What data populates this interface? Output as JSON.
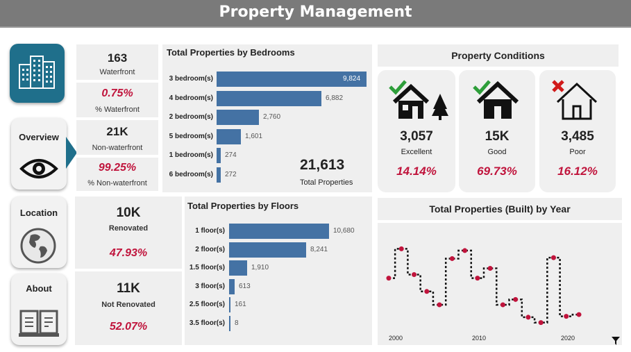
{
  "header": {
    "title": "Property Management"
  },
  "nav": {
    "overview": "Overview",
    "location": "Location",
    "about": "About"
  },
  "waterfront": {
    "count": "163",
    "label": "Waterfront",
    "pct": "0.75%",
    "pct_label": "% Waterfront",
    "non_count": "21K",
    "non_label": "Non-waterfront",
    "non_pct": "99.25%",
    "non_pct_label": "% Non-waterfront"
  },
  "renovation": {
    "renovated": "10K",
    "renovated_label": "Renovated",
    "renovated_pct": "47.93%",
    "not_renovated": "11K",
    "not_renovated_label": "Not Renovated",
    "not_renovated_pct": "52.07%"
  },
  "bedrooms": {
    "title": "Total Properties by Bedrooms",
    "total": "21,613",
    "total_label": "Total Properties",
    "items": [
      {
        "label": "3 bedroom(s)",
        "value": 9824,
        "display": "9,824"
      },
      {
        "label": "4 bedroom(s)",
        "value": 6882,
        "display": "6,882"
      },
      {
        "label": "2 bedroom(s)",
        "value": 2760,
        "display": "2,760"
      },
      {
        "label": "5 bedroom(s)",
        "value": 1601,
        "display": "1,601"
      },
      {
        "label": "1 bedroom(s)",
        "value": 274,
        "display": "274"
      },
      {
        "label": "6 bedroom(s)",
        "value": 272,
        "display": "272"
      }
    ]
  },
  "floors": {
    "title": "Total Properties by Floors",
    "items": [
      {
        "label": "1 floor(s)",
        "value": 10680,
        "display": "10,680"
      },
      {
        "label": "2 floor(s)",
        "value": 8241,
        "display": "8,241"
      },
      {
        "label": "1.5 floor(s)",
        "value": 1910,
        "display": "1,910"
      },
      {
        "label": "3 floor(s)",
        "value": 613,
        "display": "613"
      },
      {
        "label": "2.5 floor(s)",
        "value": 161,
        "display": "161"
      },
      {
        "label": "3.5 floor(s)",
        "value": 8,
        "display": "8"
      }
    ]
  },
  "conditions": {
    "title": "Property Conditions",
    "cards": [
      {
        "count": "3,057",
        "label": "Excellent",
        "pct": "14.14%",
        "icon": "house-trees-check-icon"
      },
      {
        "count": "15K",
        "label": "Good",
        "pct": "69.73%",
        "icon": "house-check-icon"
      },
      {
        "count": "3,485",
        "label": "Poor",
        "pct": "16.12%",
        "icon": "house-outline-x-icon"
      }
    ],
    "check_color": "#2e9e3a",
    "x_color": "#d11a1a"
  },
  "built": {
    "title": "Total Properties (Built) by Year"
  },
  "chart_data": {
    "type": "line",
    "title": "Total Properties (Built) by Year",
    "x_ticks": [
      "2000",
      "2010",
      "2020"
    ],
    "x": [
      2000,
      2001,
      2002,
      2003,
      2004,
      2005,
      2006,
      2007,
      2008,
      2009,
      2010,
      2011,
      2012,
      2013,
      2014,
      2015
    ],
    "series": [
      {
        "values": [
          0.55,
          0.88,
          0.59,
          0.4,
          0.25,
          0.77,
          0.86,
          0.55,
          0.66,
          0.25,
          0.31,
          0.11,
          0.05,
          0.78,
          0.12,
          0.14
        ]
      }
    ],
    "line_color": "#111111",
    "marker_color": "#c0143c",
    "line_style": "dashed"
  },
  "filter_icon": "funnel-icon"
}
